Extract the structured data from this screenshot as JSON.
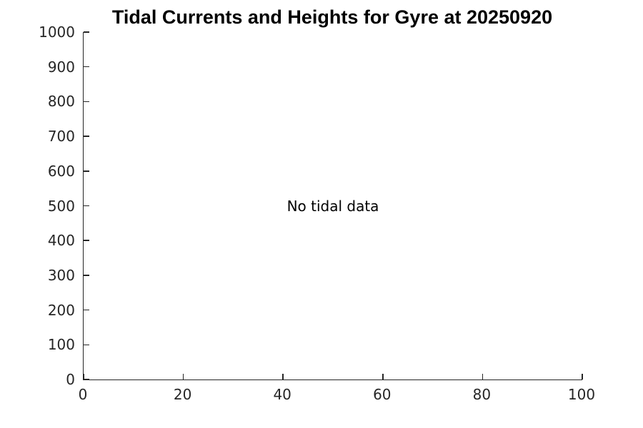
{
  "figure": {
    "background": "#ffffff"
  },
  "chart_data": {
    "type": "line",
    "title": "Tidal Currents and Heights for Gyre at 20250920",
    "xlabel": "",
    "ylabel": "",
    "xlim": [
      0,
      100
    ],
    "ylim": [
      0,
      1000
    ],
    "x_ticks": [
      0,
      20,
      40,
      60,
      80,
      100
    ],
    "y_ticks": [
      0,
      100,
      200,
      300,
      400,
      500,
      600,
      700,
      800,
      900,
      1000
    ],
    "series": [],
    "annotations": [
      {
        "text": "No tidal data",
        "x": 50,
        "y": 500
      }
    ],
    "grid": false,
    "legend": null,
    "box": false,
    "tick_direction": "in",
    "axis_color": "#262626",
    "tick_label_color": "#262626",
    "title_color": "#000000",
    "annotation_color": "#000000",
    "background": "#ffffff"
  }
}
